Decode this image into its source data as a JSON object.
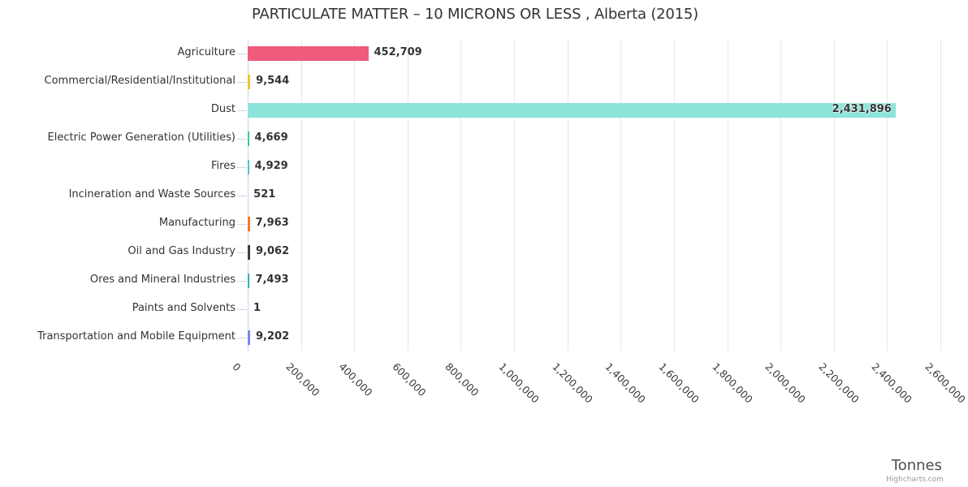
{
  "chart_data": {
    "type": "bar",
    "title": "PARTICULATE MATTER – 10 MICRONS OR LESS , Alberta (2015)",
    "xlabel": "Tonnes",
    "ylabel": "",
    "categories": [
      "Agriculture",
      "Commercial/Residential/Institutional",
      "Dust",
      "Electric Power Generation (Utilities)",
      "Fires",
      "Incineration and Waste Sources",
      "Manufacturing",
      "Oil and Gas Industry",
      "Ores and Mineral Industries",
      "Paints and Solvents",
      "Transportation and Mobile Equipment"
    ],
    "values": [
      452709,
      9544,
      2431896,
      4669,
      4929,
      521,
      7963,
      9062,
      7493,
      1,
      9202
    ],
    "value_labels": [
      "452,709",
      "9,544",
      "2,431,896",
      "4,669",
      "4,929",
      "521",
      "7,963",
      "9,062",
      "7,493",
      "1",
      "9,202"
    ],
    "bar_colors": [
      "#ee5b7d",
      "#f0c330",
      "#8ce4da",
      "#39cb8f",
      "#4cc6c0",
      "#cccccc",
      "#ed7d31",
      "#3a3d42",
      "#2fb7a6",
      "#cccccc",
      "#7b84e3"
    ],
    "xlim": [
      0,
      2600000
    ],
    "x_ticks": [
      0,
      200000,
      400000,
      600000,
      800000,
      1000000,
      1200000,
      1400000,
      1600000,
      1800000,
      2000000,
      2200000,
      2400000,
      2600000
    ],
    "x_tick_labels": [
      "0",
      "200,000",
      "400,000",
      "600,000",
      "800,000",
      "1,000,000",
      "1,200,000",
      "1,400,000",
      "1,600,000",
      "1,800,000",
      "2,000,000",
      "2,200,000",
      "2,400,000",
      "2,600,000"
    ],
    "grid": true,
    "legend": "none",
    "credits": "Highcharts.com",
    "colors": {
      "axis_line": "#ccd6eb",
      "gridline": "#e6e6e6",
      "label": "#333333"
    }
  }
}
